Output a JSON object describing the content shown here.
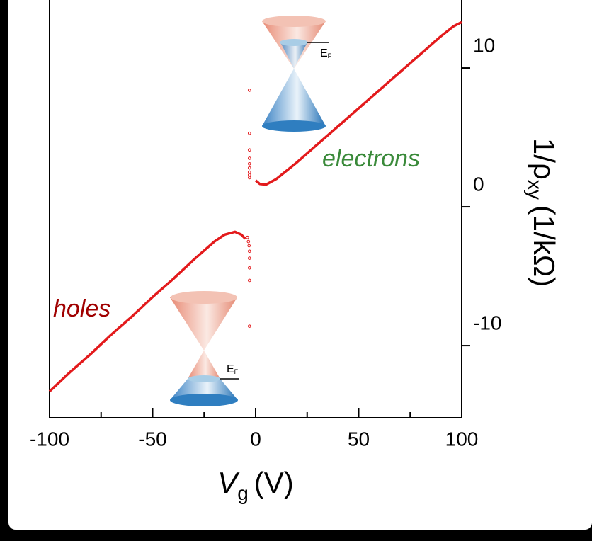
{
  "chart_data": {
    "type": "line",
    "xlabel": {
      "symbol": "V",
      "subscript": "g",
      "unit": "(V)"
    },
    "ylabel": {
      "symbol": "1/ρ",
      "subscript": "xy",
      "unit": "(1/kΩ)"
    },
    "xlim": [
      -100,
      100
    ],
    "xticks": [
      -100,
      -50,
      0,
      50,
      100
    ],
    "xminorticks": [
      -75,
      -25,
      25,
      75
    ],
    "ylim": [
      -15.2,
      14.9
    ],
    "yticks": [
      -10,
      0,
      10
    ],
    "annotations": {
      "holes": "holes",
      "electrons": "electrons",
      "fermi_upper": "E",
      "fermi_upper_sub": "F",
      "fermi_lower": "E",
      "fermi_lower_sub": "F"
    },
    "series": [
      {
        "color": "#e31a1c",
        "style": "line",
        "x": [
          -100,
          -90,
          -80,
          -70,
          -60,
          -50,
          -40,
          -30,
          -20,
          -15,
          -10,
          -7,
          -5
        ],
        "values": [
          -13.3,
          -11.9,
          -10.6,
          -9.2,
          -7.9,
          -6.5,
          -5.2,
          -3.8,
          -2.5,
          -2.0,
          -1.8,
          -2.0,
          -2.3
        ]
      },
      {
        "color": "#e31a1c",
        "style": "line",
        "x": [
          0,
          2,
          5,
          10,
          20,
          30,
          40,
          50,
          60,
          70,
          80,
          90,
          96,
          100
        ],
        "values": [
          1.9,
          1.65,
          1.6,
          2.0,
          3.2,
          4.5,
          5.8,
          7.1,
          8.4,
          9.7,
          11.0,
          12.3,
          13.0,
          13.3
        ]
      },
      {
        "color": "#e31a1c",
        "style": "markers",
        "x": [
          -4,
          -3.5,
          -3.2,
          -3,
          -3,
          -3,
          -3,
          -3,
          -3,
          -3,
          -3,
          -3,
          -3,
          -3,
          -3,
          -3,
          -3
        ],
        "values": [
          -2.2,
          -2.5,
          -2.8,
          -3.2,
          -3.7,
          -4.4,
          -5.3,
          -8.6,
          8.4,
          5.3,
          4.1,
          3.5,
          3.1,
          2.8,
          2.5,
          2.3,
          2.1
        ]
      }
    ]
  }
}
